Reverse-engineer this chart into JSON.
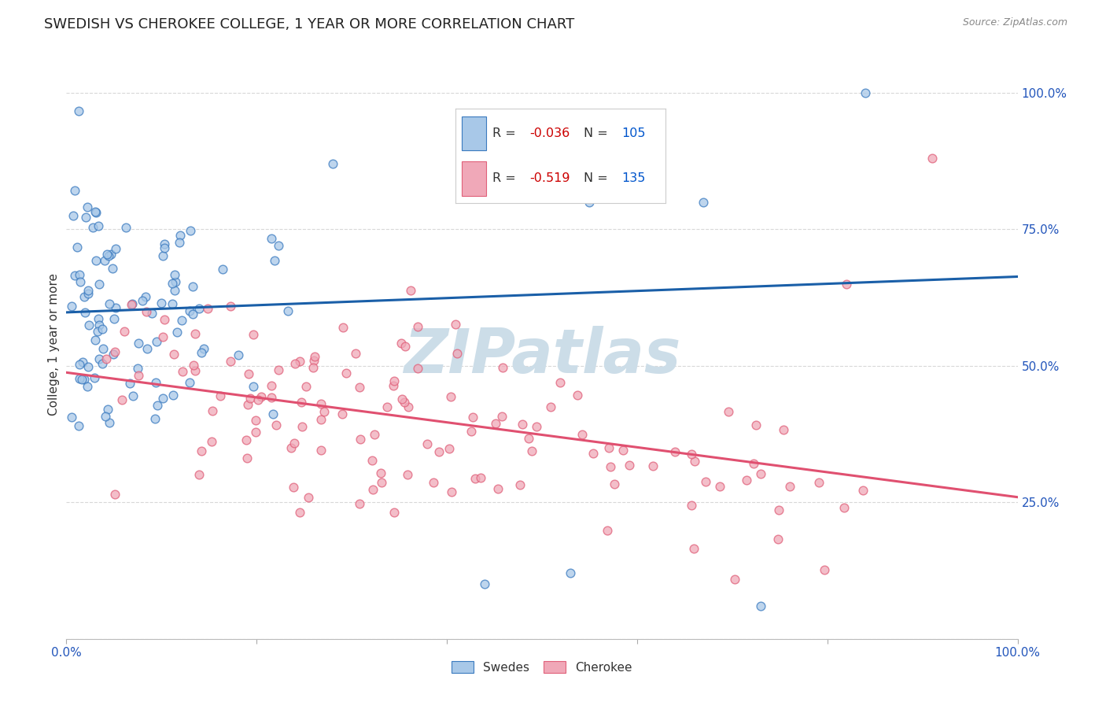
{
  "title": "SWEDISH VS CHEROKEE COLLEGE, 1 YEAR OR MORE CORRELATION CHART",
  "source": "Source: ZipAtlas.com",
  "ylabel": "College, 1 year or more",
  "xlim": [
    0.0,
    1.0
  ],
  "ylim": [
    0.0,
    1.08
  ],
  "yticks": [
    0.0,
    0.25,
    0.5,
    0.75,
    1.0
  ],
  "ytick_labels": [
    "",
    "25.0%",
    "50.0%",
    "75.0%",
    "100.0%"
  ],
  "swedes_color": "#a8c8e8",
  "cherokee_color": "#f0a8b8",
  "swedes_edge_color": "#3a7abf",
  "cherokee_edge_color": "#e0607a",
  "swedes_line_color": "#1a5fa8",
  "cherokee_line_color": "#e05070",
  "swedes_R": -0.036,
  "swedes_N": 105,
  "cherokee_R": -0.519,
  "cherokee_N": 135,
  "legend_R_color": "#cc0000",
  "legend_N_color": "#0055cc",
  "watermark": "ZIPatlas",
  "watermark_color": "#ccdde8",
  "background_color": "#ffffff",
  "grid_color": "#d8d8d8",
  "title_fontsize": 13,
  "axis_fontsize": 11,
  "marker_size": 60,
  "marker_linewidth": 1.0,
  "marker_alpha": 0.75
}
